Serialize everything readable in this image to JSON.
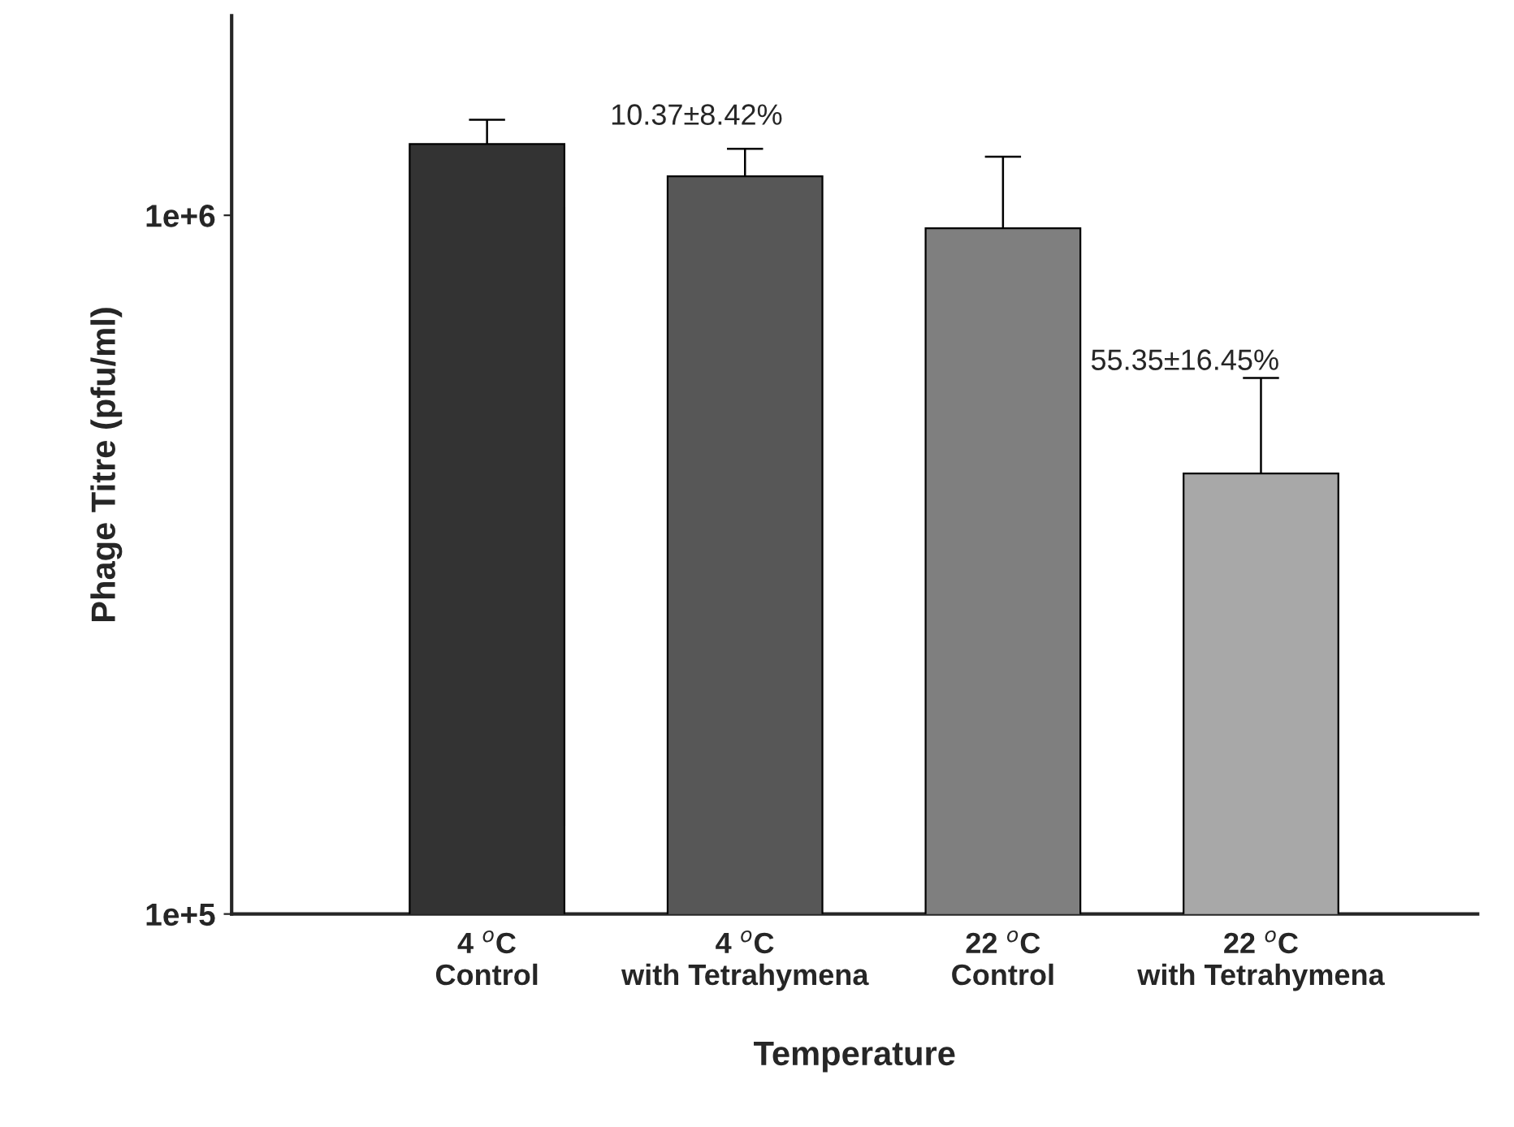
{
  "chart_data": {
    "type": "bar",
    "xlabel": "Temperature",
    "ylabel": "Phage Titre (pfu/ml)",
    "categories": [
      "4 $^{o}$C\nControl",
      "4 $^{o}$C\nwith Tetrahymena",
      "22 $^{o}$C\nControl",
      "22 $^{o}$C\nwith Tetrahymena"
    ],
    "values": [
      1265000,
      1137000,
      958000,
      427000
    ],
    "colors": [
      "#333333",
      "#575757",
      "#7f7f7f",
      "#a8a8a8"
    ],
    "errors": [
      105000,
      108000,
      255000,
      158000
    ],
    "log": true,
    "ylim": [
      100000,
      1930000
    ],
    "yticks": [
      {
        "value": 100000,
        "label": "1e+5"
      },
      {
        "value": 1000000,
        "label": "1e+6"
      }
    ],
    "grid": false,
    "legend": false,
    "annotations": [
      "10.37±8.42%",
      "55.35±16.45%"
    ]
  }
}
